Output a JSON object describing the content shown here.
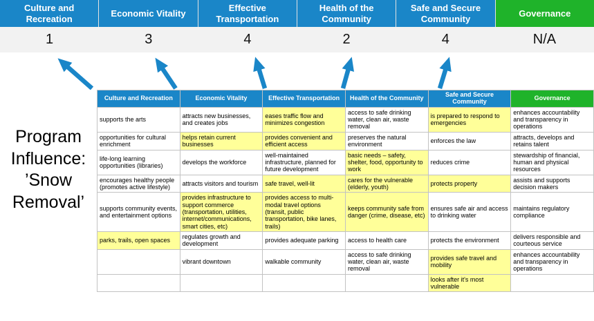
{
  "title": "Program Influence: ’Snow Removal’",
  "colors": {
    "header_blue": "#1a86c8",
    "header_green": "#1fb32a",
    "highlight_yellow": "#ffff99",
    "score_bg": "#f2f2f2",
    "arrow_blue": "#1a86c8"
  },
  "summary": {
    "columns": [
      {
        "label": "Culture and Recreation",
        "score": "1",
        "color": "blue"
      },
      {
        "label": "Economic Vitality",
        "score": "3",
        "color": "blue"
      },
      {
        "label": "Effective Transportation",
        "score": "4",
        "color": "blue"
      },
      {
        "label": "Health of the Community",
        "score": "2",
        "color": "blue"
      },
      {
        "label": "Safe and Secure Community",
        "score": "4",
        "color": "blue"
      },
      {
        "label": "Governance",
        "score": "N/A",
        "color": "green"
      }
    ]
  },
  "table": {
    "headers": [
      "Culture and Recreation",
      "Economic Vitality",
      "Effective Transportation",
      "Health of the Community",
      "Safe and Secure Community",
      "Governance"
    ],
    "rows": [
      [
        {
          "text": "supports the arts",
          "hl": false
        },
        {
          "text": "attracts new businesses, and creates jobs",
          "hl": false
        },
        {
          "text": "eases traffic flow and minimizes congestion",
          "hl": true
        },
        {
          "text": "access to safe drinking water, clean air, waste removal",
          "hl": false
        },
        {
          "text": "is prepared to respond to emergencies",
          "hl": true
        },
        {
          "text": "enhances accountability and transparency in operations",
          "hl": false
        }
      ],
      [
        {
          "text": "opportunities for cultural enrichment",
          "hl": false
        },
        {
          "text": "helps retain current businesses",
          "hl": true
        },
        {
          "text": "provides convenient and efficient access",
          "hl": true
        },
        {
          "text": "preserves the natural environment",
          "hl": false
        },
        {
          "text": "enforces the law",
          "hl": false
        },
        {
          "text": "attracts, develops and retains talent",
          "hl": false
        }
      ],
      [
        {
          "text": "life-long learning opportunities (libraries)",
          "hl": false
        },
        {
          "text": "develops the workforce",
          "hl": false
        },
        {
          "text": "well-maintained infrastructure, planned for future development",
          "hl": false
        },
        {
          "text": "basic needs – safety, shelter, food, opportunity to work",
          "hl": true
        },
        {
          "text": "reduces crime",
          "hl": false
        },
        {
          "text": "stewardship of financial, human and physical resources",
          "hl": false
        }
      ],
      [
        {
          "text": "encourages healthy people (promotes active lifestyle)",
          "hl": false
        },
        {
          "text": "attracts visitors and tourism",
          "hl": false
        },
        {
          "text": "safe travel, well-lit",
          "hl": true
        },
        {
          "text": "cares for the vulnerable (elderly, youth)",
          "hl": true
        },
        {
          "text": "protects property",
          "hl": true
        },
        {
          "text": "assists and supports decision makers",
          "hl": false
        }
      ],
      [
        {
          "text": "supports community events, and entertainment options",
          "hl": false
        },
        {
          "text": "provides infrastructure to support commerce (transportation, utilities, internet/communications, smart cities, etc)",
          "hl": true
        },
        {
          "text": "provides access to multi-modal travel options (transit, public transportation, bike lanes, trails)",
          "hl": true
        },
        {
          "text": "keeps community safe from danger (crime, disease, etc)",
          "hl": true
        },
        {
          "text": "ensures safe air and access to drinking water",
          "hl": false
        },
        {
          "text": "maintains regulatory compliance",
          "hl": false
        }
      ],
      [
        {
          "text": "parks, trails, open spaces",
          "hl": true
        },
        {
          "text": "regulates growth and development",
          "hl": false
        },
        {
          "text": "provides adequate parking",
          "hl": false
        },
        {
          "text": "access to health care",
          "hl": false
        },
        {
          "text": "protects the environment",
          "hl": false
        },
        {
          "text": "delivers responsible and courteous service",
          "hl": false
        }
      ],
      [
        {
          "text": "",
          "hl": false
        },
        {
          "text": "vibrant downtown",
          "hl": false
        },
        {
          "text": "walkable community",
          "hl": false
        },
        {
          "text": "access to safe drinking water, clean air, waste removal",
          "hl": false
        },
        {
          "text": "provides safe travel and mobility",
          "hl": true
        },
        {
          "text": "enhances accountability and transparency in operations",
          "hl": false
        }
      ],
      [
        {
          "text": "",
          "hl": false
        },
        {
          "text": "",
          "hl": false
        },
        {
          "text": "",
          "hl": false
        },
        {
          "text": "",
          "hl": false
        },
        {
          "text": "looks after it's most vulnerable",
          "hl": true
        },
        {
          "text": "",
          "hl": false
        }
      ]
    ]
  }
}
